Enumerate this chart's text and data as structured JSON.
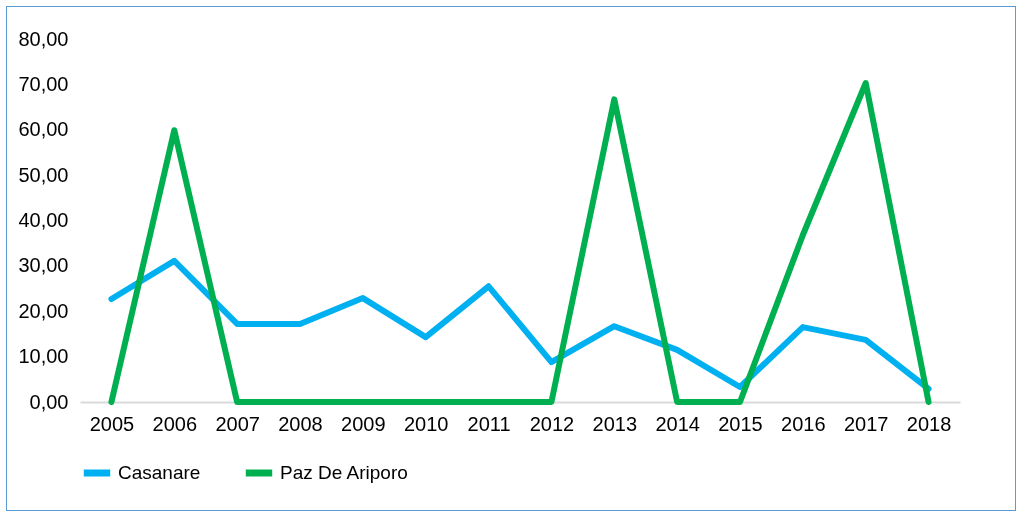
{
  "chart_data": {
    "type": "line",
    "categories": [
      "2005",
      "2006",
      "2007",
      "2008",
      "2009",
      "2010",
      "2011",
      "2012",
      "2013",
      "2014",
      "2015",
      "2016",
      "2017",
      "2018"
    ],
    "series": [
      {
        "name": "Casanare",
        "color": "#00b0f0",
        "values": [
          22.7,
          31.1,
          17.2,
          17.2,
          22.9,
          14.3,
          25.5,
          8.8,
          16.7,
          11.5,
          3.3,
          16.5,
          13.7,
          2.9
        ]
      },
      {
        "name": "Paz De Ariporo",
        "color": "#00b050",
        "values": [
          0,
          59.9,
          0,
          0,
          0,
          0,
          0,
          0,
          66.7,
          0,
          0,
          36.8,
          70.3,
          0
        ]
      }
    ],
    "ylim": [
      0,
      80
    ],
    "yticks": [
      {
        "value": 0,
        "label": "0,00"
      },
      {
        "value": 10,
        "label": "10,00"
      },
      {
        "value": 20,
        "label": "20,00"
      },
      {
        "value": 30,
        "label": "30,00"
      },
      {
        "value": 40,
        "label": "40,00"
      },
      {
        "value": 50,
        "label": "50,00"
      },
      {
        "value": 60,
        "label": "60,00"
      },
      {
        "value": 70,
        "label": "70,00"
      },
      {
        "value": 80,
        "label": "80,00"
      }
    ],
    "grid": false,
    "legend": "bottom",
    "marker": "none",
    "line_style": "solid"
  }
}
